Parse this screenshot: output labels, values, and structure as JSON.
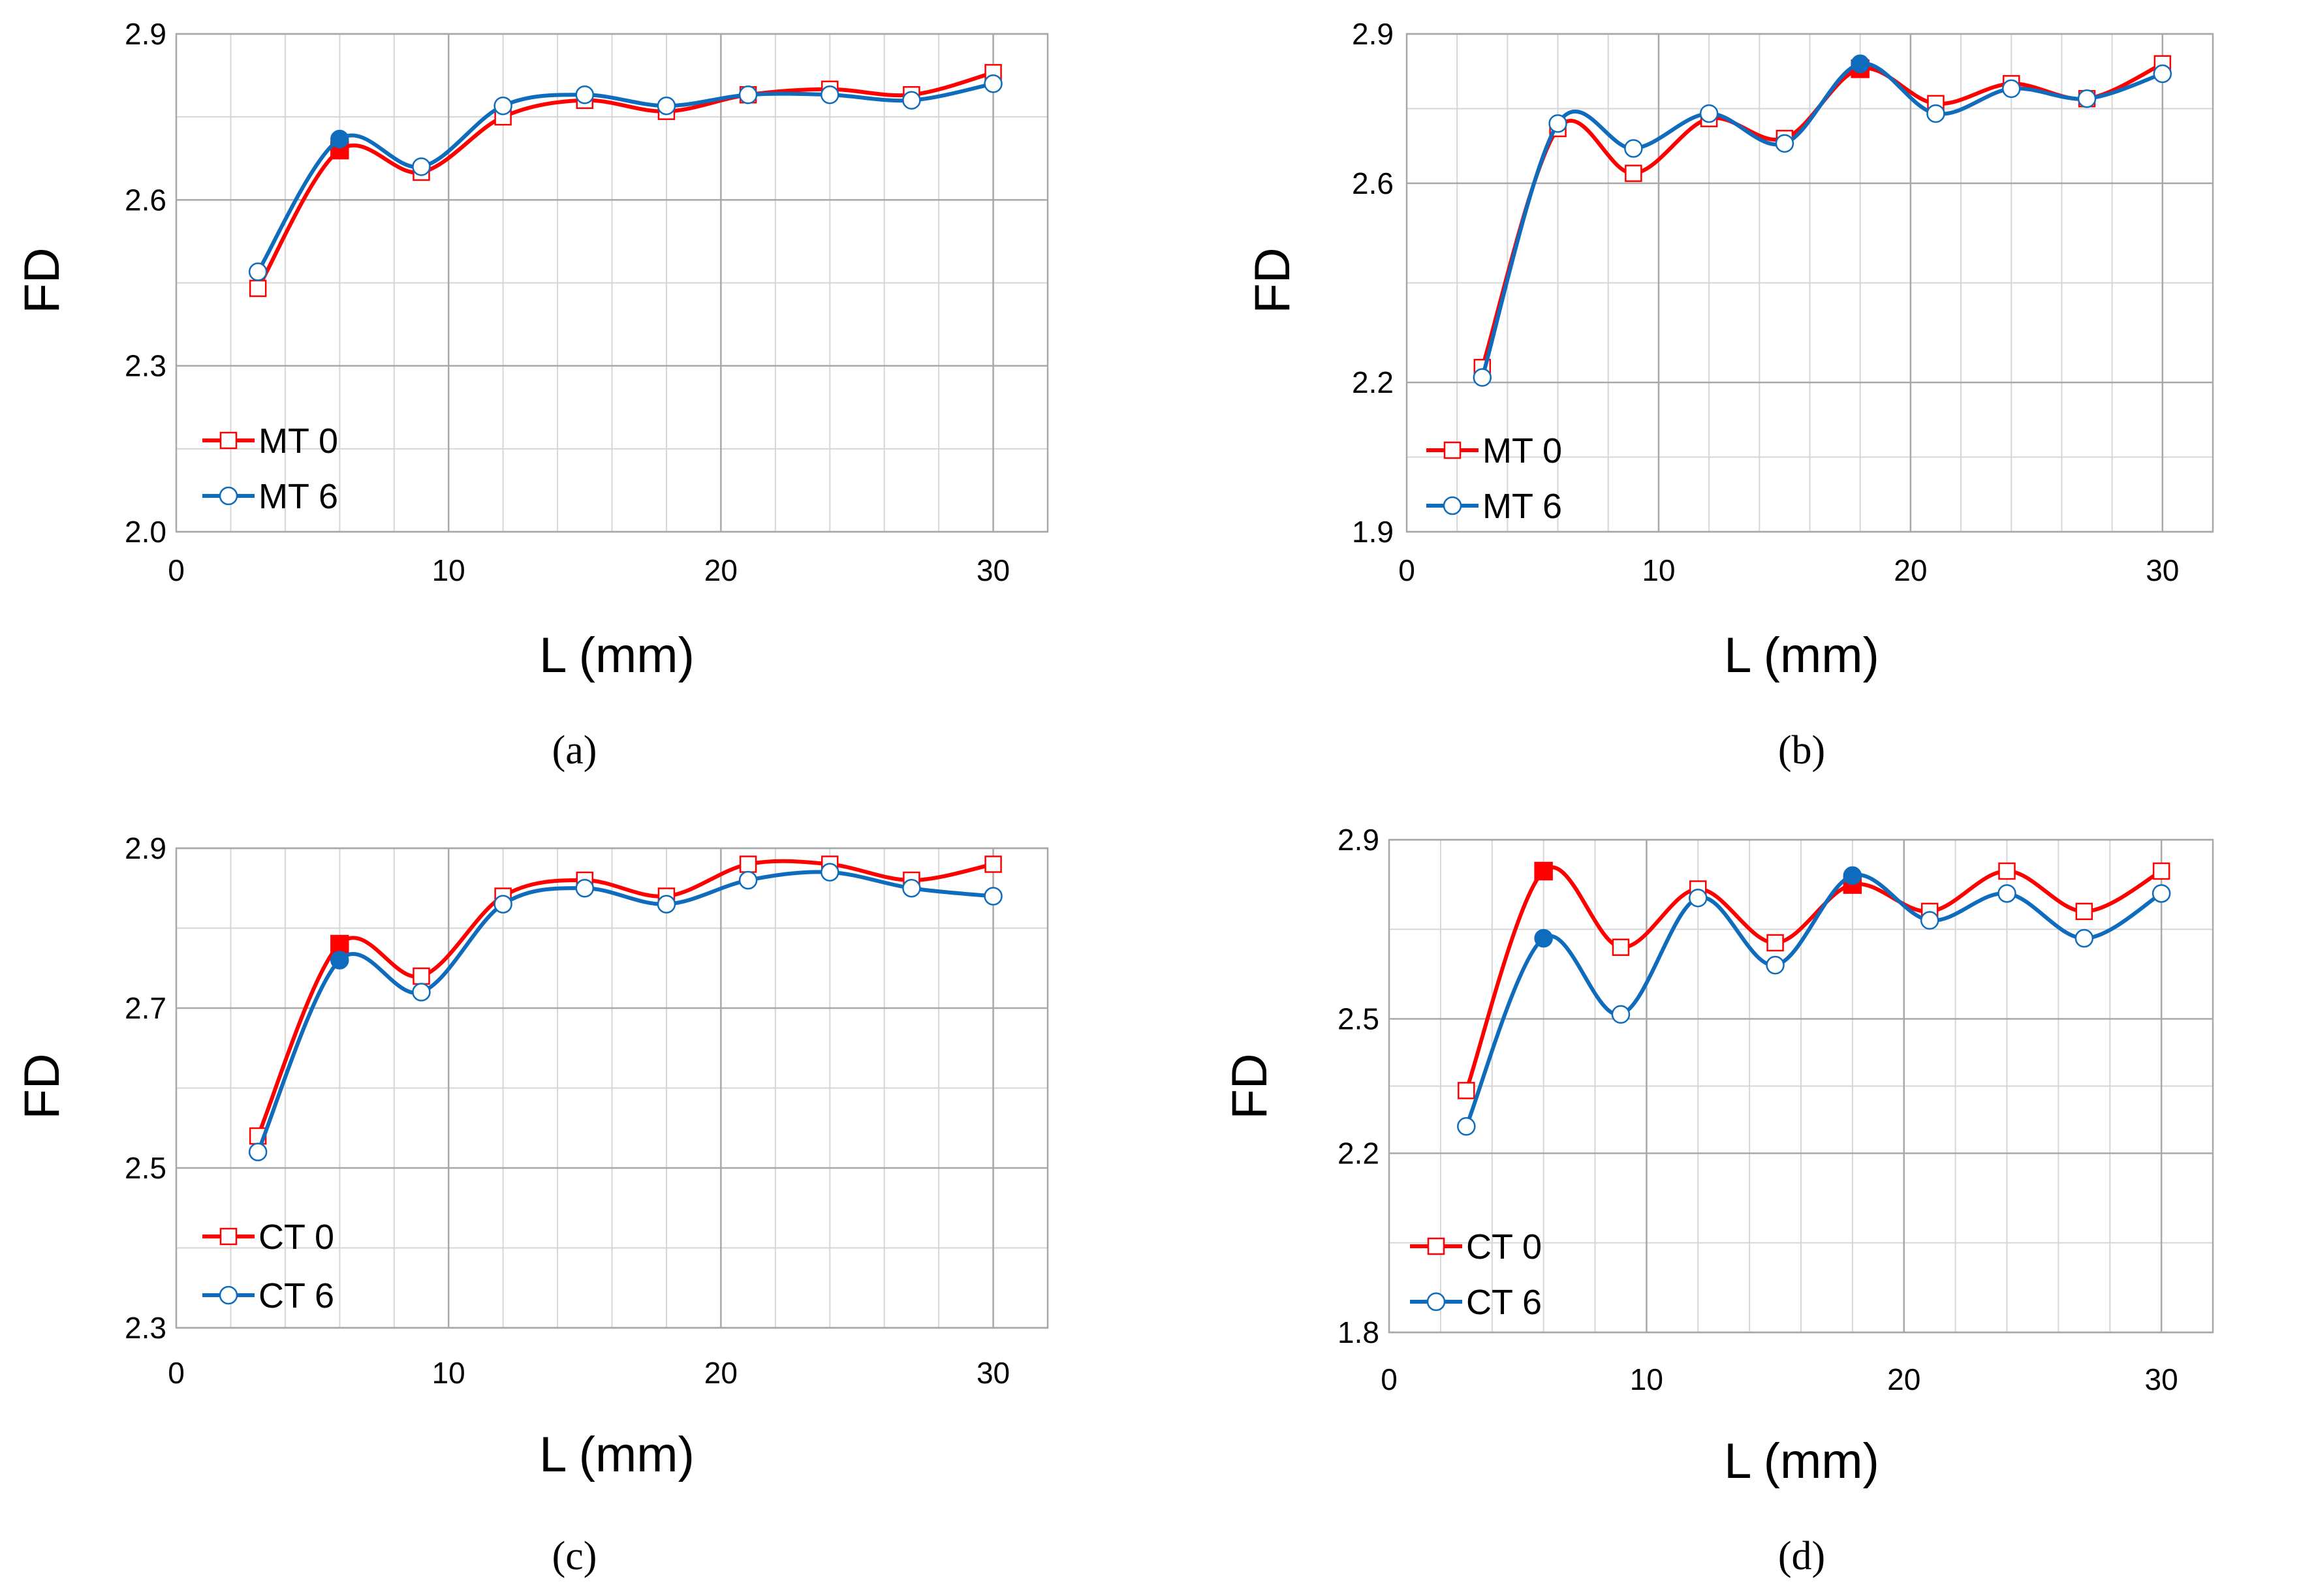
{
  "chart_data": [
    {
      "type": "line",
      "panel": "(a)",
      "xlabel": "L (mm)",
      "ylabel": "FD",
      "xlim": [
        0,
        32
      ],
      "ylim": [
        2.0,
        2.9
      ],
      "xticks": [
        0,
        10,
        20,
        30
      ],
      "yticks": [
        2.0,
        2.3,
        2.6,
        2.9
      ],
      "grid": true,
      "legend_position": "bottom-left",
      "highlight_x": 6,
      "x": [
        3,
        6,
        9,
        12,
        15,
        18,
        21,
        24,
        27,
        30
      ],
      "series": [
        {
          "name": "MT 0",
          "color": "#ff0000",
          "marker": "square",
          "values": [
            2.44,
            2.69,
            2.65,
            2.75,
            2.78,
            2.76,
            2.79,
            2.8,
            2.79,
            2.83
          ]
        },
        {
          "name": "MT 6",
          "color": "#0f6cbd",
          "marker": "circle",
          "values": [
            2.47,
            2.71,
            2.66,
            2.77,
            2.79,
            2.77,
            2.79,
            2.79,
            2.78,
            2.81
          ]
        }
      ]
    },
    {
      "type": "line",
      "panel": "(b)",
      "xlabel": "L (mm)",
      "ylabel": "FD",
      "xlim": [
        0,
        32
      ],
      "ylim": [
        1.9,
        2.9
      ],
      "xticks": [
        0,
        10,
        20,
        30
      ],
      "yticks": [
        1.9,
        2.2,
        2.6,
        2.9
      ],
      "grid": true,
      "legend_position": "bottom-left",
      "highlight_x": 18,
      "x": [
        3,
        6,
        9,
        12,
        15,
        18,
        21,
        24,
        27,
        30
      ],
      "series": [
        {
          "name": "MT 0",
          "color": "#ff0000",
          "marker": "square",
          "values": [
            2.23,
            2.71,
            2.62,
            2.73,
            2.69,
            2.83,
            2.76,
            2.8,
            2.77,
            2.84
          ]
        },
        {
          "name": "MT 6",
          "color": "#0f6cbd",
          "marker": "circle",
          "values": [
            2.21,
            2.72,
            2.67,
            2.74,
            2.68,
            2.84,
            2.74,
            2.79,
            2.77,
            2.82
          ]
        }
      ]
    },
    {
      "type": "line",
      "panel": "(c)",
      "xlabel": "L (mm)",
      "ylabel": "FD",
      "xlim": [
        0,
        32
      ],
      "ylim": [
        2.3,
        2.9
      ],
      "xticks": [
        0,
        10,
        20,
        30
      ],
      "yticks": [
        2.3,
        2.5,
        2.7,
        2.9
      ],
      "grid": true,
      "legend_position": "bottom-left",
      "highlight_x": 6,
      "x": [
        3,
        6,
        9,
        12,
        15,
        18,
        21,
        24,
        27,
        30
      ],
      "series": [
        {
          "name": "CT 0",
          "color": "#ff0000",
          "marker": "square",
          "values": [
            2.54,
            2.78,
            2.74,
            2.84,
            2.86,
            2.84,
            2.88,
            2.88,
            2.86,
            2.88
          ]
        },
        {
          "name": "CT 6",
          "color": "#0f6cbd",
          "marker": "circle",
          "values": [
            2.52,
            2.76,
            2.72,
            2.83,
            2.85,
            2.83,
            2.86,
            2.87,
            2.85,
            2.84
          ]
        }
      ]
    },
    {
      "type": "line",
      "panel": "(d)",
      "xlabel": "L (mm)",
      "ylabel": "FD",
      "xlim": [
        0,
        32
      ],
      "ylim": [
        1.8,
        2.9
      ],
      "xticks": [
        0,
        10,
        20,
        30
      ],
      "yticks": [
        1.8,
        2.2,
        2.5,
        2.9
      ],
      "grid": true,
      "legend_position": "bottom-left",
      "highlight_x": [
        6,
        18
      ],
      "x": [
        3,
        6,
        9,
        12,
        15,
        18,
        21,
        24,
        27,
        30
      ],
      "series": [
        {
          "name": "CT 0",
          "color": "#ff0000",
          "marker": "square",
          "values": [
            2.34,
            2.83,
            2.66,
            2.79,
            2.67,
            2.8,
            2.74,
            2.83,
            2.74,
            2.83
          ]
        },
        {
          "name": "CT 6",
          "color": "#0f6cbd",
          "marker": "circle",
          "values": [
            2.26,
            2.68,
            2.51,
            2.77,
            2.62,
            2.82,
            2.72,
            2.78,
            2.68,
            2.78
          ]
        }
      ]
    }
  ]
}
